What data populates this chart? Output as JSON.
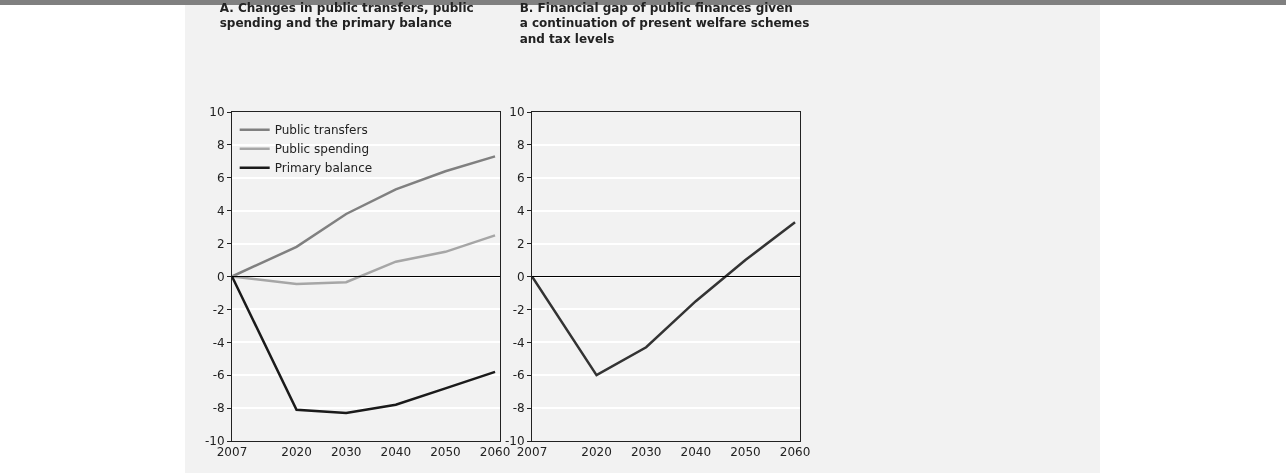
{
  "chart_data": [
    {
      "type": "line",
      "title": "A. Changes in public transfers, public spending and the primary balance",
      "x": [
        2007,
        2020,
        2030,
        2040,
        2050,
        2060
      ],
      "series": [
        {
          "name": "Public transfers",
          "color": "#808080",
          "values": [
            0,
            1.8,
            3.8,
            5.3,
            6.4,
            7.3
          ]
        },
        {
          "name": "Public spending",
          "color": "#a6a6a6",
          "values": [
            0,
            -0.45,
            -0.35,
            0.9,
            1.5,
            2.5
          ]
        },
        {
          "name": "Primary balance",
          "color": "#1a1a1a",
          "values": [
            0,
            -8.1,
            -8.3,
            -7.8,
            -6.8,
            -5.8
          ]
        }
      ],
      "xlim": [
        2007,
        2061
      ],
      "xticks": [
        2007,
        2020,
        2030,
        2040,
        2050,
        2060
      ],
      "ylim": [
        -10,
        10
      ],
      "yticks": [
        -10,
        -8,
        -6,
        -4,
        -2,
        0,
        2,
        4,
        6,
        8,
        10
      ],
      "ref_lines": [
        {
          "axis": "y",
          "value": 0,
          "color": "#000000"
        }
      ],
      "grid": "y",
      "legend": "top left",
      "marker": "none",
      "line_style": "solid"
    },
    {
      "type": "line",
      "title": "B. Financial gap of public finances given a continuation of present welfare schemes and tax levels",
      "x": [
        2007,
        2020,
        2030,
        2040,
        2050,
        2060
      ],
      "series": [
        {
          "color": "#333333",
          "values": [
            0,
            -6.0,
            -4.3,
            -1.5,
            1.0,
            3.3
          ]
        }
      ],
      "xlim": [
        2007,
        2061
      ],
      "xticks": [
        2007,
        2020,
        2030,
        2040,
        2050,
        2060
      ],
      "ylim": [
        -10,
        10
      ],
      "yticks": [
        -10,
        -8,
        -6,
        -4,
        -2,
        0,
        2,
        4,
        6,
        8,
        10
      ],
      "ref_lines": [
        {
          "axis": "y",
          "value": 0,
          "color": "#000000"
        }
      ],
      "grid": "y",
      "legend": false,
      "marker": "none",
      "line_style": "solid"
    }
  ]
}
